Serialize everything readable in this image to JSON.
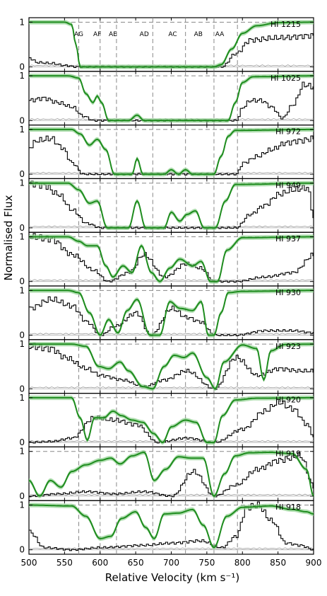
{
  "chart_data": {
    "type": "line",
    "xlabel": "Relative Velocity (km s⁻¹)",
    "ylabel": "Normalised Flux",
    "xlim": [
      500,
      900
    ],
    "ylim": [
      -0.1,
      1.1
    ],
    "xticks": [
      500,
      550,
      600,
      650,
      700,
      750,
      800,
      850,
      900
    ],
    "yticks": [
      0,
      1
    ],
    "dashed_hline": 1,
    "components": [
      {
        "name": "AG",
        "v": 570
      },
      {
        "name": "AF",
        "v": 596
      },
      {
        "name": "AE",
        "v": 618
      },
      {
        "name": "AD",
        "v": 662
      },
      {
        "name": "AC",
        "v": 702
      },
      {
        "name": "AB",
        "v": 738
      },
      {
        "name": "AA",
        "v": 768
      }
    ],
    "component_lines": [
      570,
      600,
      623,
      674,
      720,
      760,
      793
    ],
    "panels": [
      {
        "label": "HI 1215",
        "model_x": [
          500,
          550,
          560,
          566,
          572,
          760,
          770,
          785,
          800,
          820,
          850,
          900
        ],
        "model_y": [
          1.0,
          1.0,
          0.95,
          0.5,
          0.0,
          0.0,
          0.05,
          0.4,
          0.75,
          0.92,
          0.99,
          1.0
        ],
        "data_x": [
          500,
          510,
          530,
          550,
          565,
          575,
          770,
          790,
          810,
          850,
          900
        ],
        "data_y": [
          0.2,
          0.1,
          0.08,
          0.03,
          0.0,
          0.0,
          0.0,
          0.3,
          0.6,
          0.65,
          0.7
        ]
      },
      {
        "label": "HI 1025",
        "model_x": [
          500,
          555,
          570,
          580,
          590,
          596,
          602,
          612,
          640,
          652,
          662,
          780,
          790,
          800,
          815,
          900
        ],
        "model_y": [
          1.0,
          1.0,
          0.95,
          0.6,
          0.4,
          0.55,
          0.4,
          0.0,
          0.0,
          0.12,
          0.0,
          0.0,
          0.4,
          0.85,
          0.98,
          1.0
        ],
        "data_x": [
          500,
          520,
          540,
          560,
          575,
          590,
          610,
          790,
          800,
          810,
          825,
          840,
          855,
          870,
          885,
          900
        ],
        "data_y": [
          0.45,
          0.5,
          0.4,
          0.3,
          0.1,
          0.0,
          0.0,
          0.0,
          0.3,
          0.45,
          0.45,
          0.3,
          0.05,
          0.35,
          0.8,
          0.75
        ]
      },
      {
        "label": "HI 972",
        "model_x": [
          500,
          560,
          572,
          585,
          596,
          608,
          620,
          645,
          652,
          660,
          690,
          700,
          710,
          720,
          730,
          760,
          770,
          780,
          790,
          900
        ],
        "model_y": [
          1.0,
          1.0,
          0.9,
          0.65,
          0.78,
          0.55,
          0.0,
          0.0,
          0.35,
          0.0,
          0.0,
          0.1,
          0.0,
          0.1,
          0.0,
          0.0,
          0.4,
          0.85,
          0.98,
          1.0
        ],
        "data_x": [
          500,
          510,
          530,
          545,
          560,
          575,
          790,
          800,
          820,
          840,
          860,
          880,
          900
        ],
        "data_y": [
          0.6,
          0.75,
          0.8,
          0.6,
          0.25,
          0.0,
          0.0,
          0.25,
          0.4,
          0.55,
          0.7,
          0.75,
          0.8
        ]
      },
      {
        "label": "HI 949",
        "model_x": [
          500,
          555,
          570,
          585,
          596,
          610,
          640,
          652,
          664,
          690,
          700,
          712,
          722,
          734,
          746,
          762,
          776,
          790,
          900
        ],
        "model_y": [
          1.0,
          1.0,
          0.85,
          0.55,
          0.6,
          0.0,
          0.0,
          0.6,
          0.0,
          0.0,
          0.35,
          0.15,
          0.3,
          0.38,
          0.0,
          0.0,
          0.6,
          0.97,
          1.0
        ],
        "data_x": [
          500,
          520,
          540,
          560,
          580,
          600,
          790,
          810,
          830,
          850,
          870,
          890,
          900
        ],
        "data_y": [
          1.0,
          0.95,
          0.75,
          0.4,
          0.1,
          0.0,
          0.0,
          0.3,
          0.5,
          0.75,
          0.85,
          0.9,
          0.2
        ]
      },
      {
        "label": "HI 937",
        "model_x": [
          500,
          555,
          570,
          582,
          596,
          608,
          618,
          632,
          645,
          658,
          672,
          684,
          698,
          712,
          730,
          742,
          755,
          765,
          778,
          800,
          900
        ],
        "model_y": [
          1.0,
          1.0,
          0.9,
          0.8,
          0.8,
          0.35,
          0.1,
          0.35,
          0.2,
          0.8,
          0.2,
          0.0,
          0.3,
          0.5,
          0.35,
          0.45,
          0.0,
          0.0,
          0.7,
          0.98,
          1.0
        ],
        "data_x": [
          500,
          530,
          560,
          590,
          610,
          640,
          660,
          690,
          720,
          740,
          760,
          790,
          830,
          870,
          900
        ],
        "data_y": [
          1.0,
          0.95,
          0.6,
          0.25,
          0.0,
          0.2,
          0.6,
          0.1,
          0.4,
          0.3,
          0.0,
          0.0,
          0.1,
          0.2,
          0.6
        ]
      },
      {
        "label": "HI 930",
        "model_x": [
          500,
          555,
          570,
          585,
          600,
          612,
          625,
          638,
          652,
          670,
          684,
          698,
          712,
          730,
          742,
          752,
          760,
          770,
          780,
          800,
          900
        ],
        "model_y": [
          1.0,
          1.0,
          0.95,
          0.5,
          0.0,
          0.35,
          0.05,
          0.55,
          0.8,
          0.0,
          0.0,
          0.75,
          0.6,
          0.55,
          0.75,
          0.0,
          0.0,
          0.5,
          0.95,
          0.98,
          1.0
        ],
        "data_x": [
          500,
          530,
          560,
          580,
          600,
          620,
          650,
          670,
          700,
          720,
          740,
          760,
          790,
          830,
          870,
          900
        ],
        "data_y": [
          0.6,
          0.8,
          0.65,
          0.3,
          0.0,
          0.2,
          0.5,
          0.0,
          0.6,
          0.4,
          0.3,
          0.0,
          0.0,
          0.1,
          0.1,
          0.05
        ]
      },
      {
        "label": "HI 923",
        "model_x": [
          500,
          560,
          580,
          598,
          612,
          628,
          640,
          660,
          674,
          690,
          704,
          718,
          730,
          750,
          762,
          774,
          800,
          820,
          830,
          840,
          860,
          900
        ],
        "model_y": [
          1.0,
          1.0,
          0.95,
          0.5,
          0.45,
          0.6,
          0.4,
          0.05,
          0.0,
          0.5,
          0.75,
          0.7,
          0.8,
          0.25,
          0.0,
          0.6,
          0.98,
          0.9,
          0.2,
          0.85,
          0.99,
          1.0
        ],
        "data_x": [
          500,
          530,
          550,
          580,
          600,
          630,
          660,
          690,
          720,
          760,
          790,
          820,
          850,
          880,
          900
        ],
        "data_y": [
          0.95,
          0.9,
          0.7,
          0.45,
          0.3,
          0.2,
          0.05,
          0.2,
          0.4,
          0.0,
          0.7,
          0.3,
          0.45,
          0.4,
          0.4
        ]
      },
      {
        "label": "HI 920",
        "model_x": [
          500,
          560,
          572,
          582,
          592,
          605,
          618,
          630,
          645,
          660,
          675,
          688,
          700,
          720,
          735,
          750,
          760,
          772,
          790,
          820,
          900
        ],
        "model_y": [
          1.0,
          1.0,
          0.55,
          0.05,
          0.55,
          0.55,
          0.7,
          0.6,
          0.5,
          0.45,
          0.2,
          0.0,
          0.35,
          0.5,
          0.45,
          0.0,
          0.0,
          0.6,
          0.95,
          0.99,
          1.0
        ],
        "data_x": [
          500,
          530,
          560,
          590,
          620,
          650,
          680,
          720,
          760,
          800,
          830,
          850,
          870,
          890,
          900
        ],
        "data_y": [
          0.0,
          0.02,
          0.1,
          0.55,
          0.5,
          0.4,
          0.0,
          0.1,
          0.0,
          0.3,
          0.7,
          0.9,
          0.75,
          0.4,
          0.1
        ]
      },
      {
        "label": "HI 919",
        "model_x": [
          500,
          515,
          530,
          545,
          560,
          580,
          600,
          615,
          628,
          645,
          662,
          676,
          692,
          710,
          728,
          745,
          760,
          775,
          790,
          810,
          840,
          870,
          890,
          900
        ],
        "model_y": [
          0.35,
          0.0,
          0.35,
          0.2,
          0.55,
          0.7,
          0.8,
          0.85,
          0.72,
          0.9,
          0.98,
          0.35,
          0.6,
          0.88,
          0.85,
          0.85,
          0.0,
          0.5,
          0.9,
          0.97,
          0.98,
          0.95,
          0.6,
          0.0
        ],
        "data_x": [
          500,
          540,
          580,
          620,
          660,
          700,
          730,
          760,
          790,
          820,
          850,
          880,
          900
        ],
        "data_y": [
          0.0,
          0.05,
          0.1,
          0.05,
          0.1,
          0.0,
          0.55,
          0.0,
          0.25,
          0.6,
          0.8,
          0.9,
          0.2
        ]
      },
      {
        "label": "HI 918",
        "model_x": [
          500,
          560,
          580,
          600,
          615,
          630,
          650,
          664,
          676,
          690,
          710,
          730,
          745,
          760,
          778,
          800,
          840,
          870,
          890,
          900
        ],
        "model_y": [
          1.0,
          0.98,
          0.75,
          0.25,
          0.3,
          0.7,
          0.85,
          0.5,
          0.25,
          0.8,
          0.82,
          0.9,
          0.55,
          0.05,
          0.75,
          0.95,
          0.98,
          0.9,
          0.85,
          0.8
        ],
        "data_x": [
          500,
          520,
          560,
          600,
          660,
          700,
          740,
          770,
          790,
          805,
          820,
          840,
          860,
          880,
          900
        ],
        "data_y": [
          0.4,
          0.05,
          0.0,
          0.05,
          0.1,
          0.15,
          0.2,
          0.05,
          0.3,
          0.95,
          1.0,
          0.65,
          0.15,
          0.1,
          0.0
        ]
      }
    ],
    "model_color": "#1e8c1e",
    "band_color": "#8fd08f",
    "data_color": "#000000",
    "error_color": "#9a9a9a"
  }
}
